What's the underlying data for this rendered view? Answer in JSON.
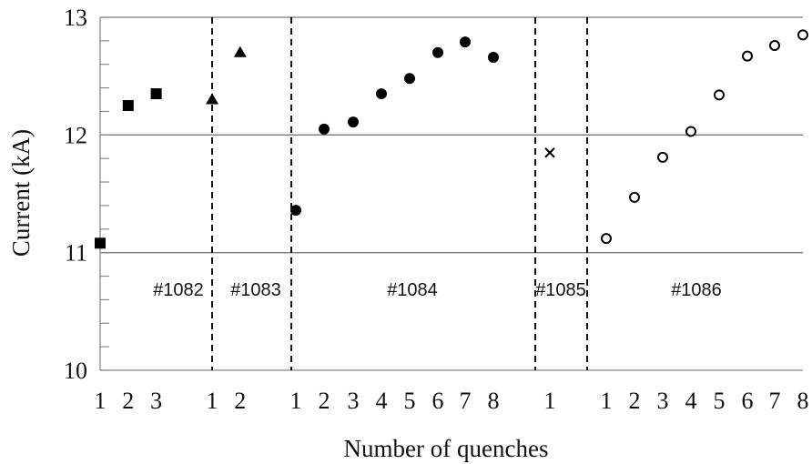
{
  "chart_data": {
    "type": "scatter",
    "title": "",
    "xlabel": "Number of quenches",
    "ylabel": "Current (kA)",
    "ylim": [
      10,
      13
    ],
    "yticks": [
      "10",
      "11",
      "12",
      "13"
    ],
    "grid": "horizontal",
    "groups": [
      {
        "name": "#1082",
        "marker": "square",
        "x": [
          "1",
          "2",
          "3"
        ],
        "values": [
          11.08,
          12.25,
          12.35
        ]
      },
      {
        "name": "#1083",
        "marker": "triangle",
        "x": [
          "1",
          "2"
        ],
        "values": [
          12.3,
          12.7
        ]
      },
      {
        "name": "#1084",
        "marker": "filled-circle",
        "x": [
          "1",
          "2",
          "3",
          "4",
          "5",
          "6",
          "7",
          "8"
        ],
        "values": [
          11.36,
          12.05,
          12.11,
          12.35,
          12.48,
          12.7,
          12.79,
          12.66
        ]
      },
      {
        "name": "#1085",
        "marker": "cross",
        "x": [
          "1"
        ],
        "values": [
          11.85
        ]
      },
      {
        "name": "#1086",
        "marker": "open-circle",
        "x": [
          "1",
          "2",
          "3",
          "4",
          "5",
          "6",
          "7",
          "8"
        ],
        "values": [
          11.12,
          11.47,
          11.81,
          12.03,
          12.34,
          12.67,
          12.76,
          12.85
        ]
      }
    ]
  }
}
